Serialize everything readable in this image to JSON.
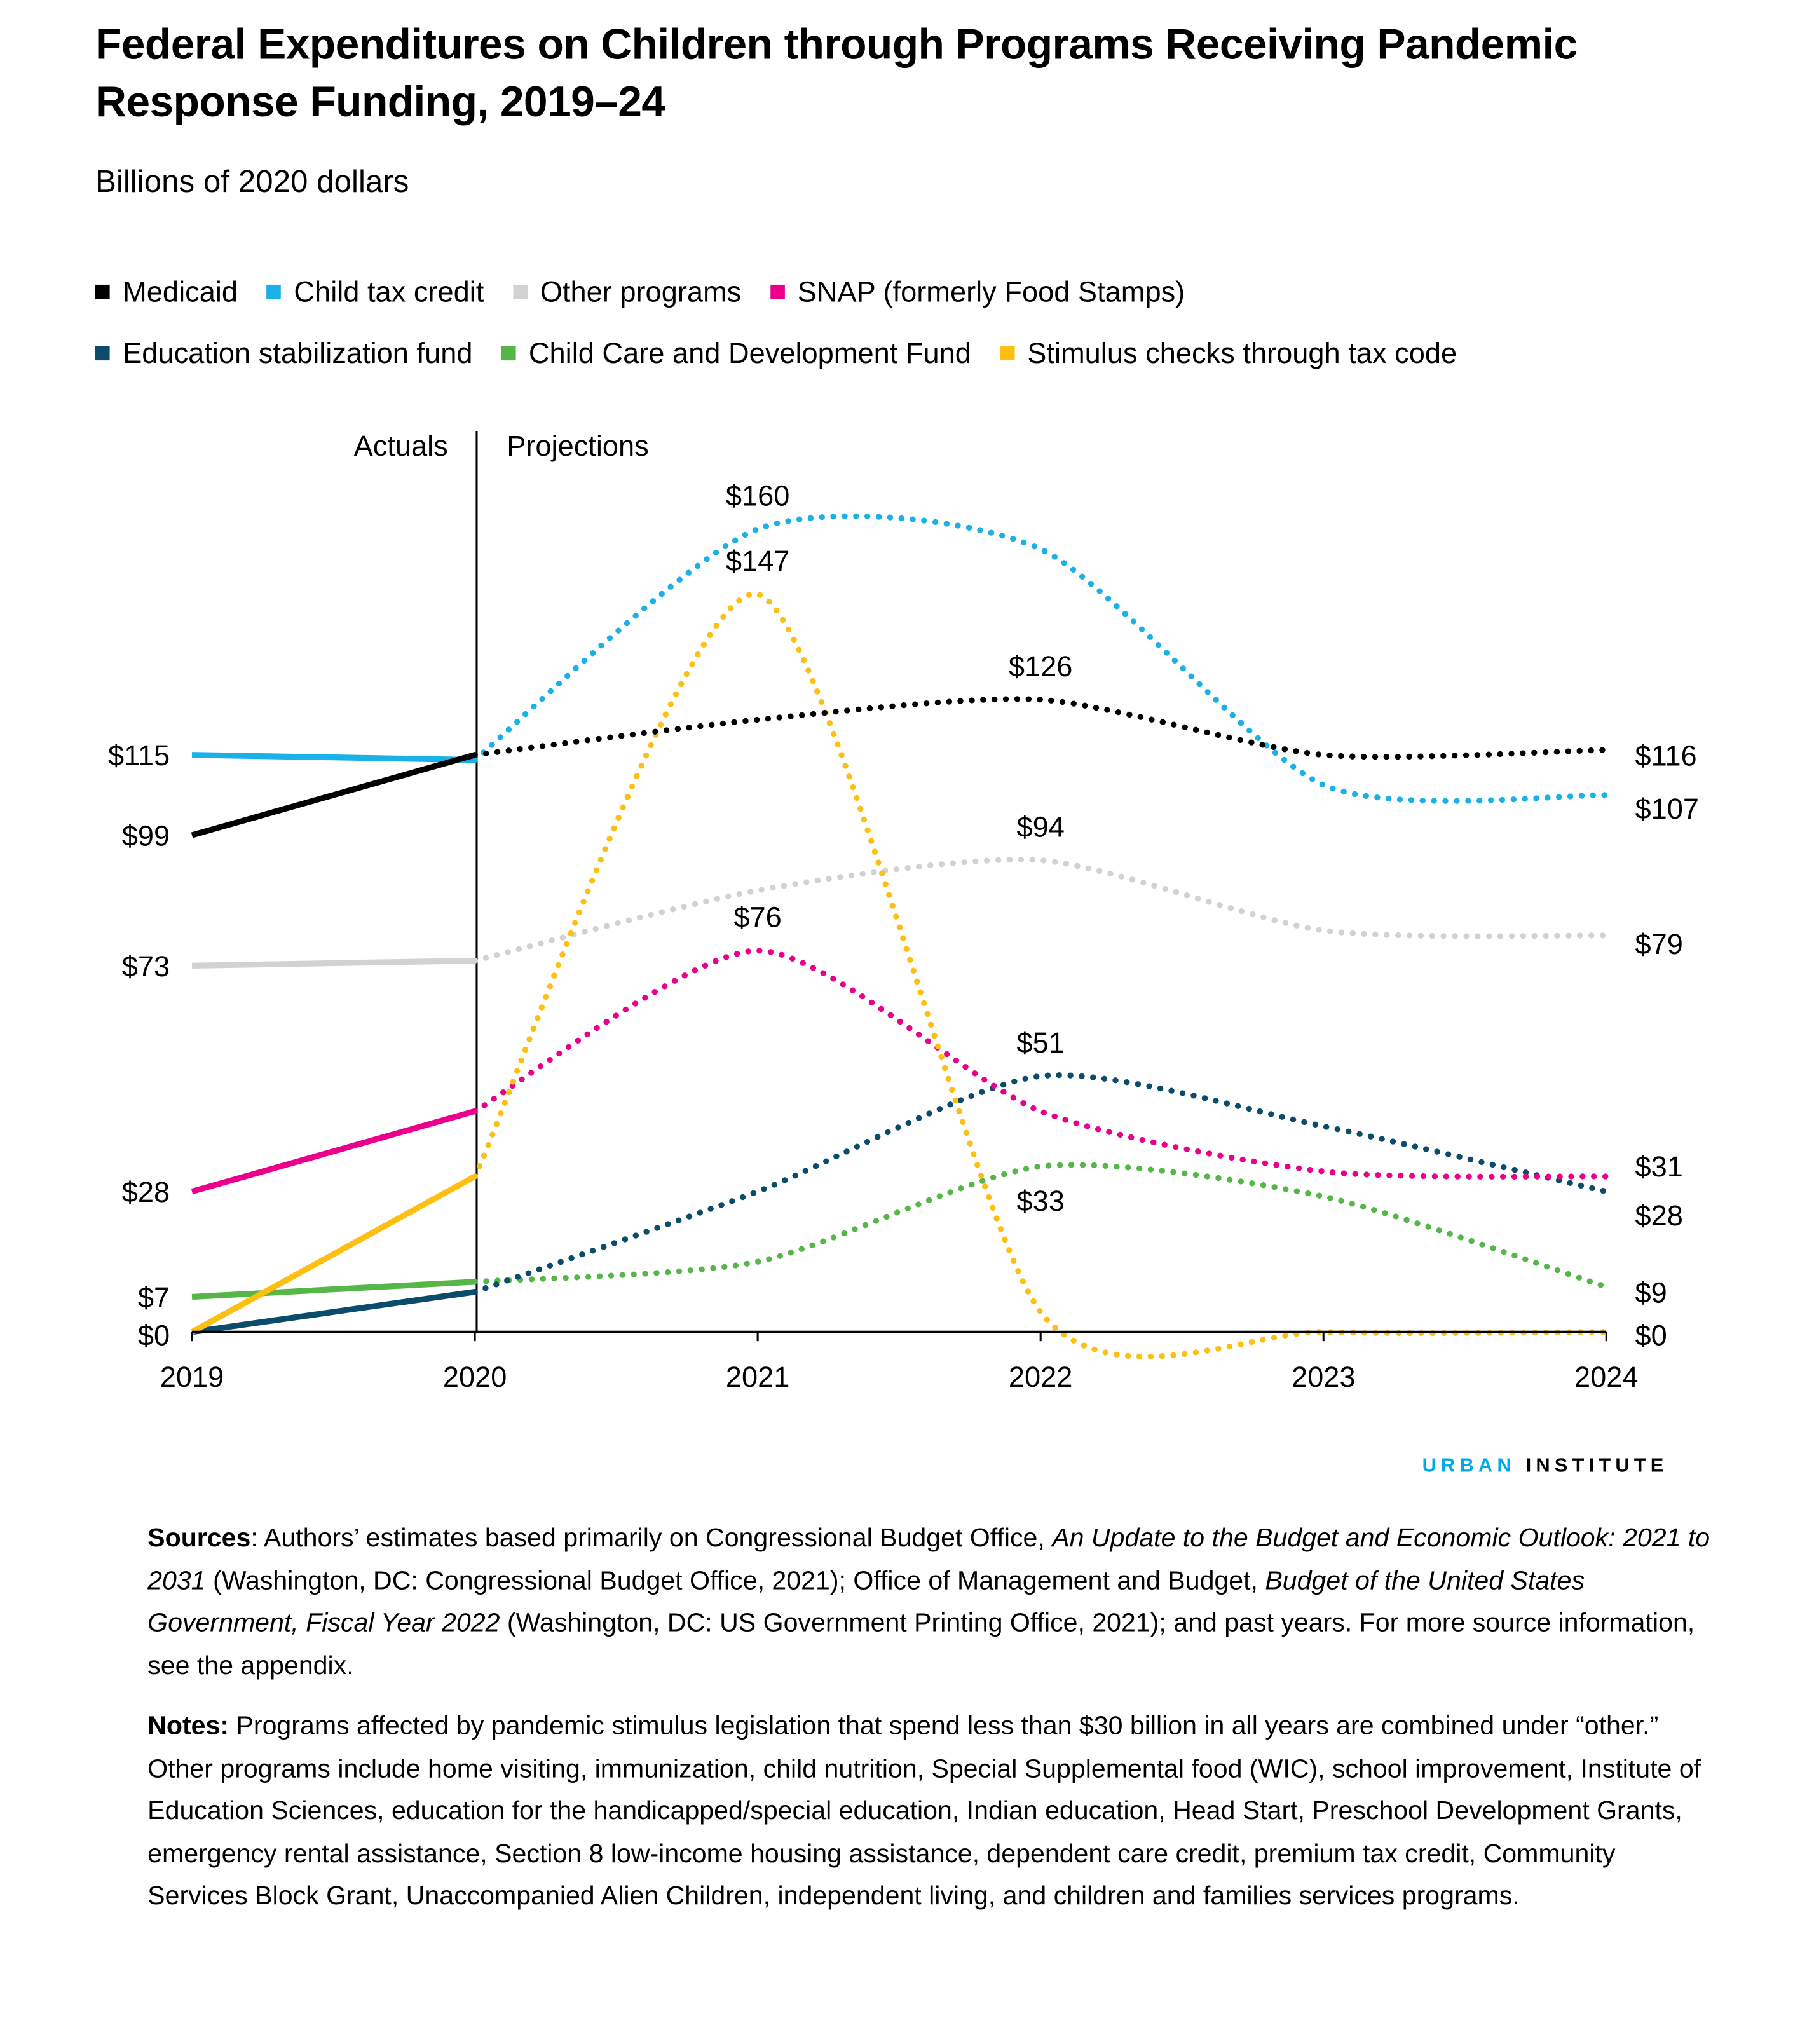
{
  "title": "Federal Expenditures on Children through Programs Receiving Pandemic Response Funding, 2019–24",
  "subtitle": "Billions of 2020 dollars",
  "logo": {
    "part1": "URBAN",
    "part2": "INSTITUTE",
    "color1": "#00a9e9"
  },
  "chart_data": {
    "type": "line",
    "title": "Federal Expenditures on Children through Programs Receiving Pandemic Response Funding, 2019–24",
    "ylabel": "Billions of 2020 dollars",
    "x": [
      "2019",
      "2020",
      "2021",
      "2022",
      "2023",
      "2024"
    ],
    "ylim": [
      0,
      165
    ],
    "grid": false,
    "legend_placement": "top",
    "regions": [
      {
        "label": "Actuals",
        "range": [
          "2019",
          "2020"
        ],
        "style": "solid"
      },
      {
        "label": "Projections",
        "range": [
          "2020",
          "2024"
        ],
        "style": "dotted"
      }
    ],
    "series": [
      {
        "name": "Medicaid",
        "color": "#000000",
        "values": [
          99,
          115,
          122,
          126,
          115,
          116
        ]
      },
      {
        "name": "Child tax credit",
        "color": "#1ab0e8",
        "values": [
          115,
          114,
          160,
          156,
          109,
          107
        ]
      },
      {
        "name": "Other programs",
        "color": "#d2d2d2",
        "values": [
          73,
          74,
          88,
          94,
          80,
          79
        ]
      },
      {
        "name": "SNAP (formerly Food Stamps)",
        "color": "#ec008b",
        "values": [
          28,
          44,
          76,
          44,
          32,
          31
        ]
      },
      {
        "name": "Education stabilization fund",
        "color": "#0a4c6a",
        "values": [
          0,
          8,
          28,
          51,
          41,
          28
        ]
      },
      {
        "name": "Child Care and Development Fund",
        "color": "#55b748",
        "values": [
          7,
          10,
          14,
          33,
          27,
          9
        ]
      },
      {
        "name": "Stimulus checks through tax code",
        "color": "#fdbf11",
        "values": [
          0,
          31,
          147,
          4,
          0,
          0
        ]
      }
    ],
    "data_labels": [
      {
        "series": 0,
        "x": "2019",
        "text": "$99"
      },
      {
        "series": 1,
        "x": "2019",
        "text": "$115"
      },
      {
        "series": 2,
        "x": "2019",
        "text": "$73"
      },
      {
        "series": 3,
        "x": "2019",
        "text": "$28"
      },
      {
        "series": 5,
        "x": "2019",
        "text": "$7"
      },
      {
        "series": 4,
        "x": "2019",
        "text": "$0"
      },
      {
        "series": 1,
        "x": "2021",
        "text": "$160"
      },
      {
        "series": 6,
        "x": "2021",
        "text": "$147"
      },
      {
        "series": 3,
        "x": "2021",
        "text": "$76"
      },
      {
        "series": 0,
        "x": "2022",
        "text": "$126"
      },
      {
        "series": 2,
        "x": "2022",
        "text": "$94"
      },
      {
        "series": 4,
        "x": "2022",
        "text": "$51"
      },
      {
        "series": 5,
        "x": "2022",
        "text": "$33"
      },
      {
        "series": 0,
        "x": "2024",
        "text": "$116"
      },
      {
        "series": 1,
        "x": "2024",
        "text": "$107"
      },
      {
        "series": 2,
        "x": "2024",
        "text": "$79"
      },
      {
        "series": 3,
        "x": "2024",
        "text": "$31"
      },
      {
        "series": 4,
        "x": "2024",
        "text": "$28"
      },
      {
        "series": 5,
        "x": "2024",
        "text": "$9"
      },
      {
        "series": 6,
        "x": "2024",
        "text": "$0"
      }
    ]
  },
  "sources": {
    "label": "Sources",
    "parts": [
      {
        "text": ": Authors’ estimates based primarily on Congressional Budget Office, ",
        "italic": false
      },
      {
        "text": "An Update to the Budget and Economic Outlook: 2021 to 2031",
        "italic": true
      },
      {
        "text": " (Washington, DC: Congressional Budget Office, 2021); Office of Management and Budget, ",
        "italic": false
      },
      {
        "text": "Budget of the United States Government, Fiscal Year 2022",
        "italic": true
      },
      {
        "text": " (Washington, DC: US Government Printing Office, 2021); and past years. For more source information, see the appendix.",
        "italic": false
      }
    ]
  },
  "notes": {
    "label": "Notes:",
    "text": " Programs affected by pandemic stimulus legislation that spend less than $30 billion in all years are combined under “other.” Other programs include home visiting, immunization, child nutrition, Special Supplemental food (WIC), school improvement, Institute of Education Sciences, education for the handicapped/special education, Indian education, Head Start, Preschool Development Grants, emergency rental assistance, Section 8 low-income housing assistance, dependent care credit, premium tax credit, Community Services Block Grant, Unaccompanied Alien Children, independent living, and children and families services programs."
  }
}
